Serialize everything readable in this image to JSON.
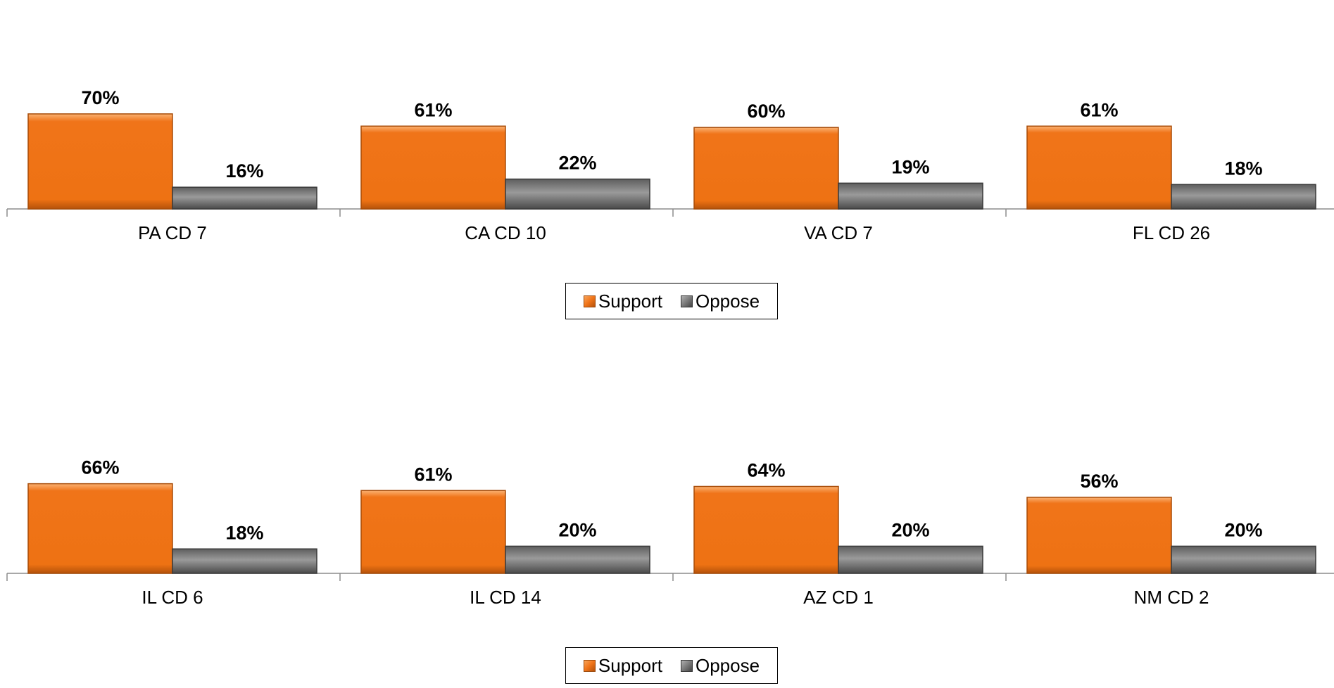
{
  "chart_data": [
    {
      "type": "bar",
      "categories": [
        "PA CD 7",
        "CA CD 10",
        "VA CD 7",
        "FL CD 26"
      ],
      "series": [
        {
          "name": "Support",
          "values": [
            70,
            61,
            60,
            61
          ],
          "labels": [
            "70%",
            "61%",
            "60%",
            "61%"
          ]
        },
        {
          "name": "Oppose",
          "values": [
            16,
            22,
            19,
            18
          ],
          "labels": [
            "16%",
            "22%",
            "19%",
            "18%"
          ]
        }
      ],
      "ylim": [
        0,
        100
      ],
      "grid": false,
      "legend": "bottom"
    },
    {
      "type": "bar",
      "categories": [
        "IL CD 6",
        "IL CD 14",
        "AZ CD 1",
        "NM CD 2"
      ],
      "series": [
        {
          "name": "Support",
          "values": [
            66,
            61,
            64,
            56
          ],
          "labels": [
            "66%",
            "61%",
            "64%",
            "56%"
          ]
        },
        {
          "name": "Oppose",
          "values": [
            18,
            20,
            20,
            20
          ],
          "labels": [
            "18%",
            "20%",
            "20%",
            "20%"
          ]
        }
      ],
      "ylim": [
        0,
        100
      ],
      "grid": false,
      "legend": "bottom"
    }
  ],
  "colors": {
    "support": "#f07419",
    "oppose": "#7a7a7a"
  }
}
